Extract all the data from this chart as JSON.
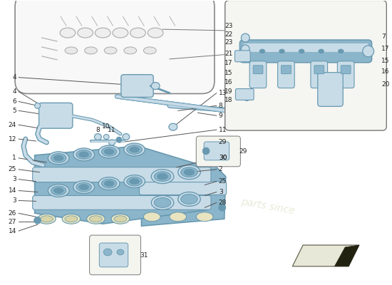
{
  "bg_color": "#ffffff",
  "part_color": "#a8c4d8",
  "part_color_dark": "#6899b0",
  "part_color_light": "#c8dce8",
  "part_color_mid": "#8bb5ca",
  "outline_color": "#aaaaaa",
  "line_color": "#555555",
  "text_color": "#222222",
  "border_color": "#888888",
  "gasket_color": "#e8e4c0",
  "watermark_color": "#c8d4a8",
  "engine_outline": "#888888",
  "pipe_color": "#90b8cc"
}
